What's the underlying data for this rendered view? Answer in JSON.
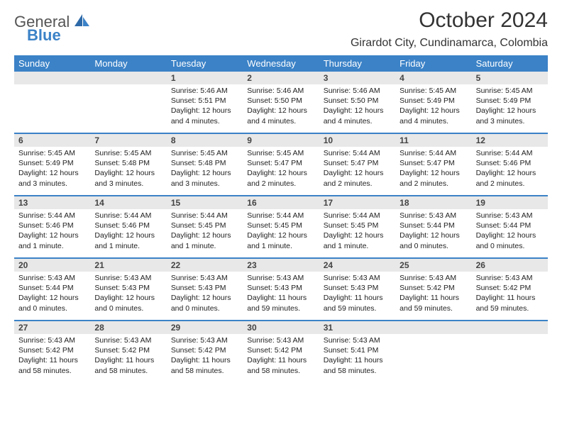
{
  "logo": {
    "line1": "General",
    "line2": "Blue"
  },
  "title": "October 2024",
  "location": "Girardot City, Cundinamarca, Colombia",
  "colors": {
    "header_bg": "#3b82c7",
    "daynum_bg": "#e8e8e8",
    "week_border": "#3b82c7",
    "text": "#222222",
    "logo_gray": "#555555",
    "logo_blue": "#3b82c7",
    "page_bg": "#ffffff"
  },
  "day_names": [
    "Sunday",
    "Monday",
    "Tuesday",
    "Wednesday",
    "Thursday",
    "Friday",
    "Saturday"
  ],
  "weeks": [
    [
      {
        "n": "",
        "sunrise": "",
        "sunset": "",
        "daylight": ""
      },
      {
        "n": "",
        "sunrise": "",
        "sunset": "",
        "daylight": ""
      },
      {
        "n": "1",
        "sunrise": "5:46 AM",
        "sunset": "5:51 PM",
        "daylight": "12 hours and 4 minutes."
      },
      {
        "n": "2",
        "sunrise": "5:46 AM",
        "sunset": "5:50 PM",
        "daylight": "12 hours and 4 minutes."
      },
      {
        "n": "3",
        "sunrise": "5:46 AM",
        "sunset": "5:50 PM",
        "daylight": "12 hours and 4 minutes."
      },
      {
        "n": "4",
        "sunrise": "5:45 AM",
        "sunset": "5:49 PM",
        "daylight": "12 hours and 4 minutes."
      },
      {
        "n": "5",
        "sunrise": "5:45 AM",
        "sunset": "5:49 PM",
        "daylight": "12 hours and 3 minutes."
      }
    ],
    [
      {
        "n": "6",
        "sunrise": "5:45 AM",
        "sunset": "5:49 PM",
        "daylight": "12 hours and 3 minutes."
      },
      {
        "n": "7",
        "sunrise": "5:45 AM",
        "sunset": "5:48 PM",
        "daylight": "12 hours and 3 minutes."
      },
      {
        "n": "8",
        "sunrise": "5:45 AM",
        "sunset": "5:48 PM",
        "daylight": "12 hours and 3 minutes."
      },
      {
        "n": "9",
        "sunrise": "5:45 AM",
        "sunset": "5:47 PM",
        "daylight": "12 hours and 2 minutes."
      },
      {
        "n": "10",
        "sunrise": "5:44 AM",
        "sunset": "5:47 PM",
        "daylight": "12 hours and 2 minutes."
      },
      {
        "n": "11",
        "sunrise": "5:44 AM",
        "sunset": "5:47 PM",
        "daylight": "12 hours and 2 minutes."
      },
      {
        "n": "12",
        "sunrise": "5:44 AM",
        "sunset": "5:46 PM",
        "daylight": "12 hours and 2 minutes."
      }
    ],
    [
      {
        "n": "13",
        "sunrise": "5:44 AM",
        "sunset": "5:46 PM",
        "daylight": "12 hours and 1 minute."
      },
      {
        "n": "14",
        "sunrise": "5:44 AM",
        "sunset": "5:46 PM",
        "daylight": "12 hours and 1 minute."
      },
      {
        "n": "15",
        "sunrise": "5:44 AM",
        "sunset": "5:45 PM",
        "daylight": "12 hours and 1 minute."
      },
      {
        "n": "16",
        "sunrise": "5:44 AM",
        "sunset": "5:45 PM",
        "daylight": "12 hours and 1 minute."
      },
      {
        "n": "17",
        "sunrise": "5:44 AM",
        "sunset": "5:45 PM",
        "daylight": "12 hours and 1 minute."
      },
      {
        "n": "18",
        "sunrise": "5:43 AM",
        "sunset": "5:44 PM",
        "daylight": "12 hours and 0 minutes."
      },
      {
        "n": "19",
        "sunrise": "5:43 AM",
        "sunset": "5:44 PM",
        "daylight": "12 hours and 0 minutes."
      }
    ],
    [
      {
        "n": "20",
        "sunrise": "5:43 AM",
        "sunset": "5:44 PM",
        "daylight": "12 hours and 0 minutes."
      },
      {
        "n": "21",
        "sunrise": "5:43 AM",
        "sunset": "5:43 PM",
        "daylight": "12 hours and 0 minutes."
      },
      {
        "n": "22",
        "sunrise": "5:43 AM",
        "sunset": "5:43 PM",
        "daylight": "12 hours and 0 minutes."
      },
      {
        "n": "23",
        "sunrise": "5:43 AM",
        "sunset": "5:43 PM",
        "daylight": "11 hours and 59 minutes."
      },
      {
        "n": "24",
        "sunrise": "5:43 AM",
        "sunset": "5:43 PM",
        "daylight": "11 hours and 59 minutes."
      },
      {
        "n": "25",
        "sunrise": "5:43 AM",
        "sunset": "5:42 PM",
        "daylight": "11 hours and 59 minutes."
      },
      {
        "n": "26",
        "sunrise": "5:43 AM",
        "sunset": "5:42 PM",
        "daylight": "11 hours and 59 minutes."
      }
    ],
    [
      {
        "n": "27",
        "sunrise": "5:43 AM",
        "sunset": "5:42 PM",
        "daylight": "11 hours and 58 minutes."
      },
      {
        "n": "28",
        "sunrise": "5:43 AM",
        "sunset": "5:42 PM",
        "daylight": "11 hours and 58 minutes."
      },
      {
        "n": "29",
        "sunrise": "5:43 AM",
        "sunset": "5:42 PM",
        "daylight": "11 hours and 58 minutes."
      },
      {
        "n": "30",
        "sunrise": "5:43 AM",
        "sunset": "5:42 PM",
        "daylight": "11 hours and 58 minutes."
      },
      {
        "n": "31",
        "sunrise": "5:43 AM",
        "sunset": "5:41 PM",
        "daylight": "11 hours and 58 minutes."
      },
      {
        "n": "",
        "sunrise": "",
        "sunset": "",
        "daylight": ""
      },
      {
        "n": "",
        "sunrise": "",
        "sunset": "",
        "daylight": ""
      }
    ]
  ],
  "labels": {
    "sunrise": "Sunrise: ",
    "sunset": "Sunset: ",
    "daylight": "Daylight: "
  }
}
